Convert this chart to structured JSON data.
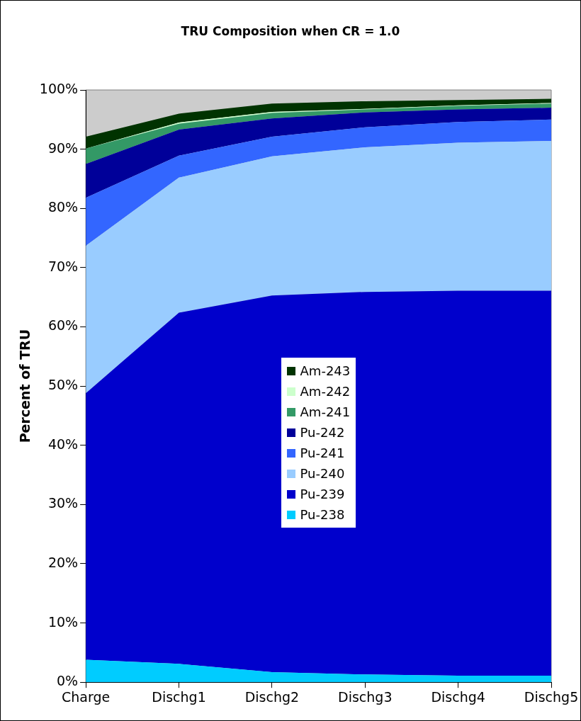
{
  "chart_data": {
    "type": "area",
    "title": "TRU Composition when CR = 1.0",
    "ylabel": "Percent of TRU",
    "stacked": true,
    "grid": false,
    "legend": "center",
    "categories": [
      "Charge",
      "Dischg1",
      "Dischg2",
      "Dischg3",
      "Dischg4",
      "Dischg5"
    ],
    "ylim": [
      0,
      100
    ],
    "yticks": [
      {
        "value": 0,
        "label": "0%"
      },
      {
        "value": 10,
        "label": "10%"
      },
      {
        "value": 20,
        "label": "20%"
      },
      {
        "value": 30,
        "label": "30%"
      },
      {
        "value": 40,
        "label": "40%"
      },
      {
        "value": 50,
        "label": "50%"
      },
      {
        "value": 60,
        "label": "60%"
      },
      {
        "value": 70,
        "label": "70%"
      },
      {
        "value": 80,
        "label": "80%"
      },
      {
        "value": 90,
        "label": "90%"
      },
      {
        "value": 100,
        "label": "100%"
      }
    ],
    "series": [
      {
        "name": "Pu-238",
        "color": "#00ccff",
        "values": [
          3.8,
          3.1,
          1.7,
          1.3,
          1.1,
          1.1
        ]
      },
      {
        "name": "Pu-239",
        "color": "#0000cc",
        "values": [
          45.0,
          59.3,
          63.6,
          64.6,
          65.0,
          65.0
        ]
      },
      {
        "name": "Pu-240",
        "color": "#99ccff",
        "values": [
          24.9,
          22.8,
          23.5,
          24.4,
          25.0,
          25.3
        ]
      },
      {
        "name": "Pu-241",
        "color": "#3366ff",
        "values": [
          8.1,
          3.7,
          3.3,
          3.4,
          3.5,
          3.6
        ]
      },
      {
        "name": "Pu-242",
        "color": "#000099",
        "values": [
          5.7,
          4.4,
          3.1,
          2.5,
          2.1,
          2.0
        ]
      },
      {
        "name": "Am-241",
        "color": "#339966",
        "values": [
          2.6,
          1.0,
          0.9,
          0.5,
          0.6,
          0.7
        ]
      },
      {
        "name": "Am-242",
        "color": "#ccffcc",
        "values": [
          0,
          0.2,
          0.2,
          0.1,
          0.1,
          0.1
        ]
      },
      {
        "name": "Am-243",
        "color": "#003300",
        "values": [
          2.0,
          1.5,
          1.4,
          1.3,
          0.9,
          0.7
        ]
      }
    ]
  }
}
